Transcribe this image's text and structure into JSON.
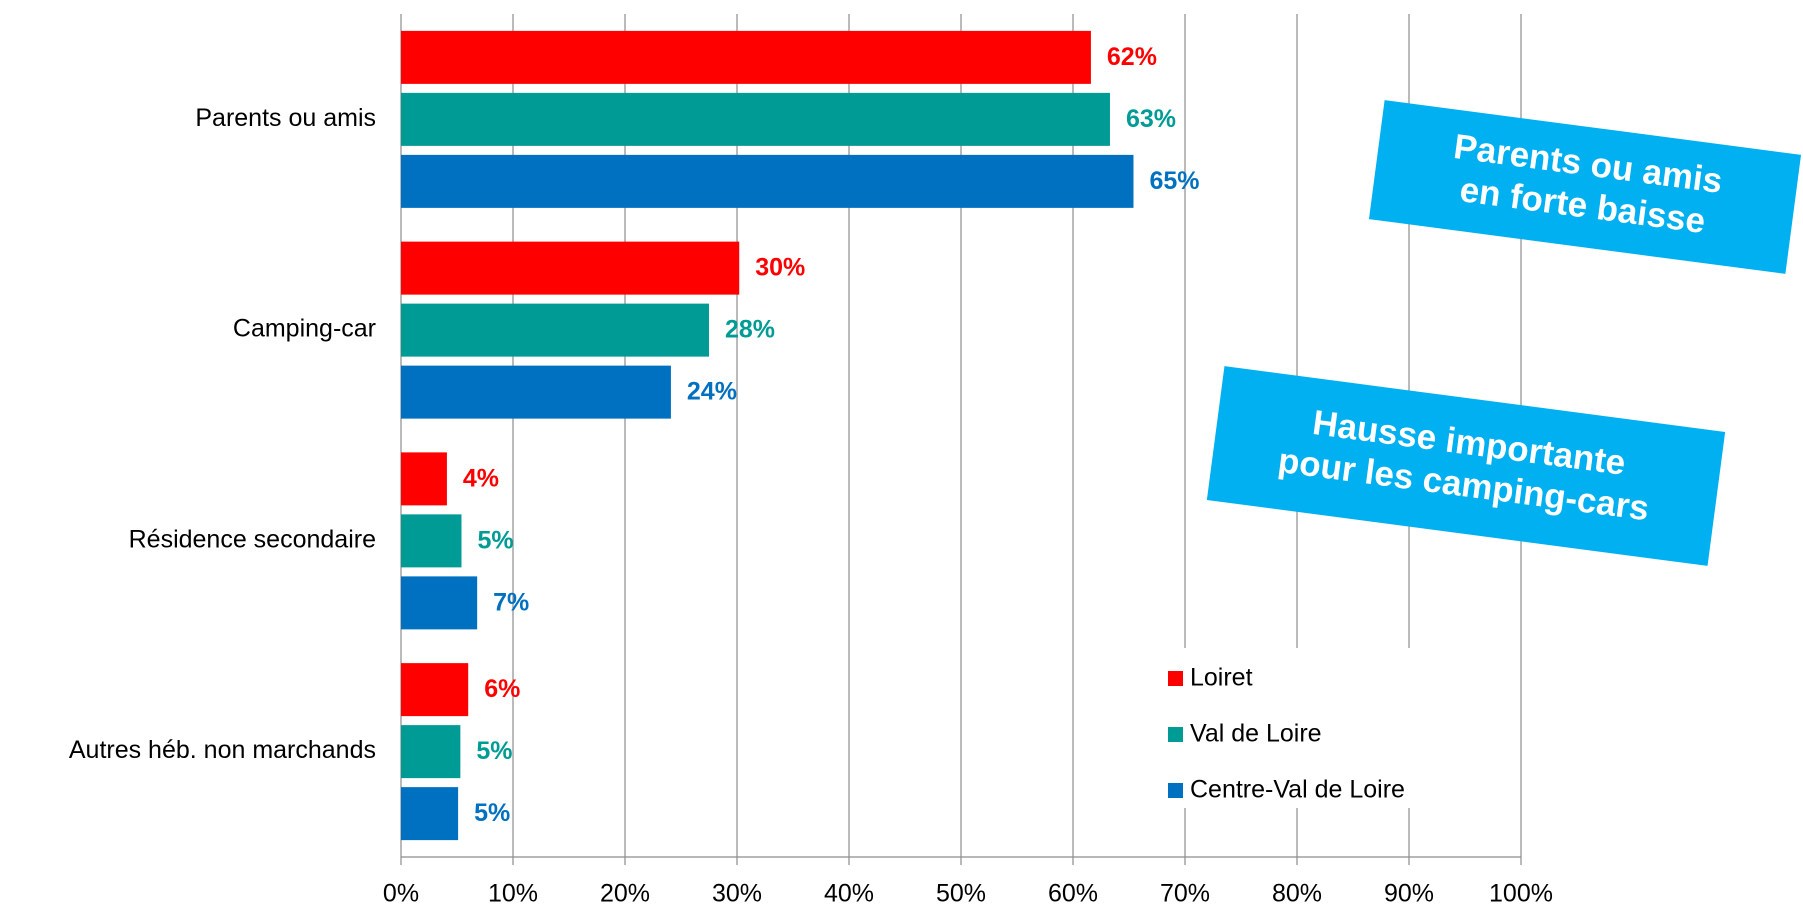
{
  "chart_data": {
    "type": "hbar",
    "categories": [
      "Parents ou amis",
      "Camping-car",
      "Résidence secondaire",
      "Autres héb. non marchands"
    ],
    "series": [
      {
        "name": "Loiret",
        "color": "#ff0000",
        "values": [
          61.6,
          30.2,
          4.1,
          6.0
        ],
        "value_labels": [
          "62%",
          "30%",
          "4%",
          "6%"
        ]
      },
      {
        "name": "Val de Loire",
        "color": "#009b95",
        "values": [
          63.3,
          27.5,
          5.4,
          5.3
        ],
        "value_labels": [
          "63%",
          "28%",
          "5%",
          "5%"
        ]
      },
      {
        "name": "Centre-Val de Loire",
        "color": "#0070c0",
        "values": [
          65.4,
          24.1,
          6.8,
          5.1
        ],
        "value_labels": [
          "65%",
          "24%",
          "7%",
          "5%"
        ]
      }
    ],
    "xlim": [
      0,
      100
    ],
    "xticks": [
      {
        "value": 0,
        "label": "0%"
      },
      {
        "value": 10,
        "label": "10%"
      },
      {
        "value": 20,
        "label": "20%"
      },
      {
        "value": 30,
        "label": "30%"
      },
      {
        "value": 40,
        "label": "40%"
      },
      {
        "value": 50,
        "label": "50%"
      },
      {
        "value": 60,
        "label": "60%"
      },
      {
        "value": 70,
        "label": "70%"
      },
      {
        "value": 80,
        "label": "80%"
      },
      {
        "value": 90,
        "label": "90%"
      },
      {
        "value": 100,
        "label": "100%"
      }
    ],
    "grid": true,
    "legend": "lower right",
    "annotation_color": "#00b0f0",
    "annotations": [
      {
        "lines": [
          "Parents ou amis",
          "en forte baisse"
        ]
      },
      {
        "lines": [
          "Hausse importante",
          "pour les camping-cars"
        ]
      }
    ]
  }
}
